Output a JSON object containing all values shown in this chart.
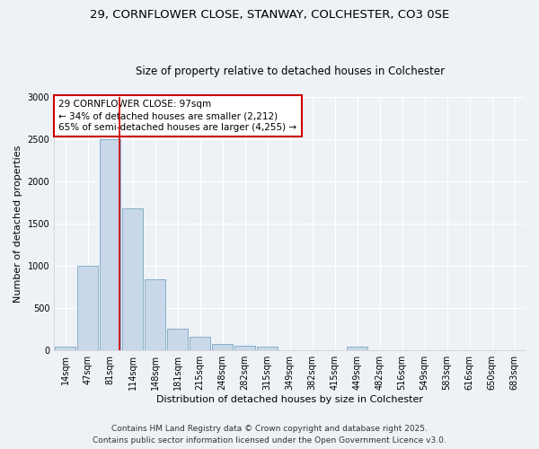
{
  "title_line1": "29, CORNFLOWER CLOSE, STANWAY, COLCHESTER, CO3 0SE",
  "title_line2": "Size of property relative to detached houses in Colchester",
  "xlabel": "Distribution of detached houses by size in Colchester",
  "ylabel": "Number of detached properties",
  "bar_color": "#c8d8e8",
  "bar_edge_color": "#6699bb",
  "categories": [
    "14sqm",
    "47sqm",
    "81sqm",
    "114sqm",
    "148sqm",
    "181sqm",
    "215sqm",
    "248sqm",
    "282sqm",
    "315sqm",
    "349sqm",
    "382sqm",
    "415sqm",
    "449sqm",
    "482sqm",
    "516sqm",
    "549sqm",
    "583sqm",
    "616sqm",
    "650sqm",
    "683sqm"
  ],
  "values": [
    50,
    1000,
    2500,
    1680,
    840,
    260,
    160,
    80,
    60,
    50,
    0,
    0,
    0,
    40,
    0,
    0,
    0,
    0,
    0,
    0,
    0
  ],
  "ylim": [
    0,
    3000
  ],
  "yticks": [
    0,
    500,
    1000,
    1500,
    2000,
    2500,
    3000
  ],
  "property_line_x": 2.42,
  "annotation_text": "29 CORNFLOWER CLOSE: 97sqm\n← 34% of detached houses are smaller (2,212)\n65% of semi-detached houses are larger (4,255) →",
  "annotation_box_color": "#ffffff",
  "annotation_box_edge": "#cc0000",
  "vline_color": "#cc0000",
  "footer_line1": "Contains HM Land Registry data © Crown copyright and database right 2025.",
  "footer_line2": "Contains public sector information licensed under the Open Government Licence v3.0.",
  "background_color": "#eef2f7",
  "grid_color": "#ffffff",
  "title_fontsize": 9.5,
  "subtitle_fontsize": 8.5,
  "axis_label_fontsize": 8,
  "tick_fontsize": 7,
  "annotation_fontsize": 7.5,
  "footer_fontsize": 6.5
}
